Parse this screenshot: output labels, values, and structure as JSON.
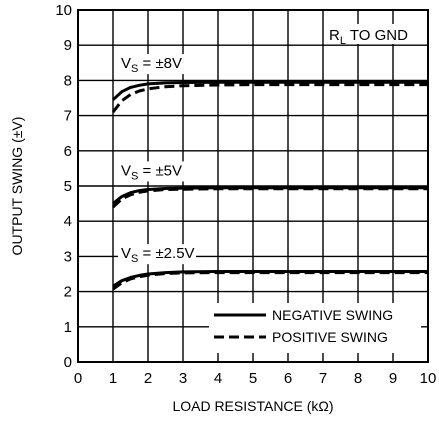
{
  "chart_data": {
    "type": "line",
    "xlabel": "LOAD RESISTANCE (kΩ)",
    "ylabel": "OUTPUT SWING (±V)",
    "xlim": [
      0,
      10
    ],
    "ylim": [
      0,
      10
    ],
    "x_ticks": [
      "0",
      "1",
      "2",
      "3",
      "4",
      "5",
      "6",
      "7",
      "8",
      "9",
      "10"
    ],
    "y_ticks": [
      "0",
      "1",
      "2",
      "3",
      "4",
      "5",
      "6",
      "7",
      "8",
      "9",
      "10"
    ],
    "grid": true,
    "note": {
      "main": "R",
      "sub": "L",
      "rest": " TO GND"
    },
    "legend": {
      "placement": "bottom-right",
      "entries": [
        {
          "label": "NEGATIVE SWING",
          "style": "solid"
        },
        {
          "label": "POSITIVE SWING",
          "style": "dashed"
        }
      ]
    },
    "groups": [
      {
        "label": {
          "main": "V",
          "sub": "S",
          "rest": " = ±8V"
        },
        "label_y": 8.35,
        "series": [
          {
            "name": "NEGATIVE SWING",
            "style": "solid",
            "x": [
              1,
              1.25,
              1.5,
              1.75,
              2,
              2.5,
              3,
              4,
              5,
              6,
              7,
              8,
              9,
              10
            ],
            "y": [
              7.45,
              7.68,
              7.8,
              7.86,
              7.9,
              7.93,
              7.94,
              7.95,
              7.95,
              7.95,
              7.95,
              7.95,
              7.95,
              7.95
            ]
          },
          {
            "name": "POSITIVE SWING",
            "style": "dashed",
            "x": [
              1,
              1.25,
              1.5,
              1.75,
              2,
              2.5,
              3,
              4,
              5,
              6,
              7,
              8,
              9,
              10
            ],
            "y": [
              7.1,
              7.42,
              7.6,
              7.7,
              7.76,
              7.82,
              7.85,
              7.87,
              7.88,
              7.88,
              7.88,
              7.88,
              7.88,
              7.88
            ]
          }
        ]
      },
      {
        "label": {
          "main": "V",
          "sub": "S",
          "rest": " = ±5V"
        },
        "label_y": 5.3,
        "series": [
          {
            "name": "NEGATIVE SWING",
            "style": "solid",
            "x": [
              1,
              1.25,
              1.5,
              1.75,
              2,
              2.5,
              3,
              4,
              5,
              6,
              7,
              8,
              9,
              10
            ],
            "y": [
              4.5,
              4.7,
              4.81,
              4.87,
              4.9,
              4.93,
              4.94,
              4.95,
              4.95,
              4.95,
              4.95,
              4.95,
              4.95,
              4.95
            ]
          },
          {
            "name": "POSITIVE SWING",
            "style": "dashed",
            "x": [
              1,
              1.25,
              1.5,
              1.75,
              2,
              2.5,
              3,
              4,
              5,
              6,
              7,
              8,
              9,
              10
            ],
            "y": [
              4.4,
              4.63,
              4.75,
              4.82,
              4.86,
              4.9,
              4.91,
              4.92,
              4.92,
              4.92,
              4.92,
              4.92,
              4.92,
              4.92
            ]
          }
        ]
      },
      {
        "label": {
          "main": "V",
          "sub": "S",
          "rest": " = ±2.5V"
        },
        "label_y": 2.95,
        "series": [
          {
            "name": "NEGATIVE SWING",
            "style": "solid",
            "x": [
              1,
              1.25,
              1.5,
              1.75,
              2,
              2.5,
              3,
              4,
              5,
              6,
              7,
              8,
              9,
              10
            ],
            "y": [
              2.15,
              2.31,
              2.4,
              2.46,
              2.5,
              2.54,
              2.56,
              2.57,
              2.57,
              2.57,
              2.57,
              2.57,
              2.57,
              2.57
            ]
          },
          {
            "name": "POSITIVE SWING",
            "style": "dashed",
            "x": [
              1,
              1.25,
              1.5,
              1.75,
              2,
              2.5,
              3,
              4,
              5,
              6,
              7,
              8,
              9,
              10
            ],
            "y": [
              2.07,
              2.25,
              2.36,
              2.42,
              2.47,
              2.51,
              2.53,
              2.54,
              2.54,
              2.54,
              2.54,
              2.54,
              2.54,
              2.54
            ]
          }
        ]
      }
    ]
  }
}
